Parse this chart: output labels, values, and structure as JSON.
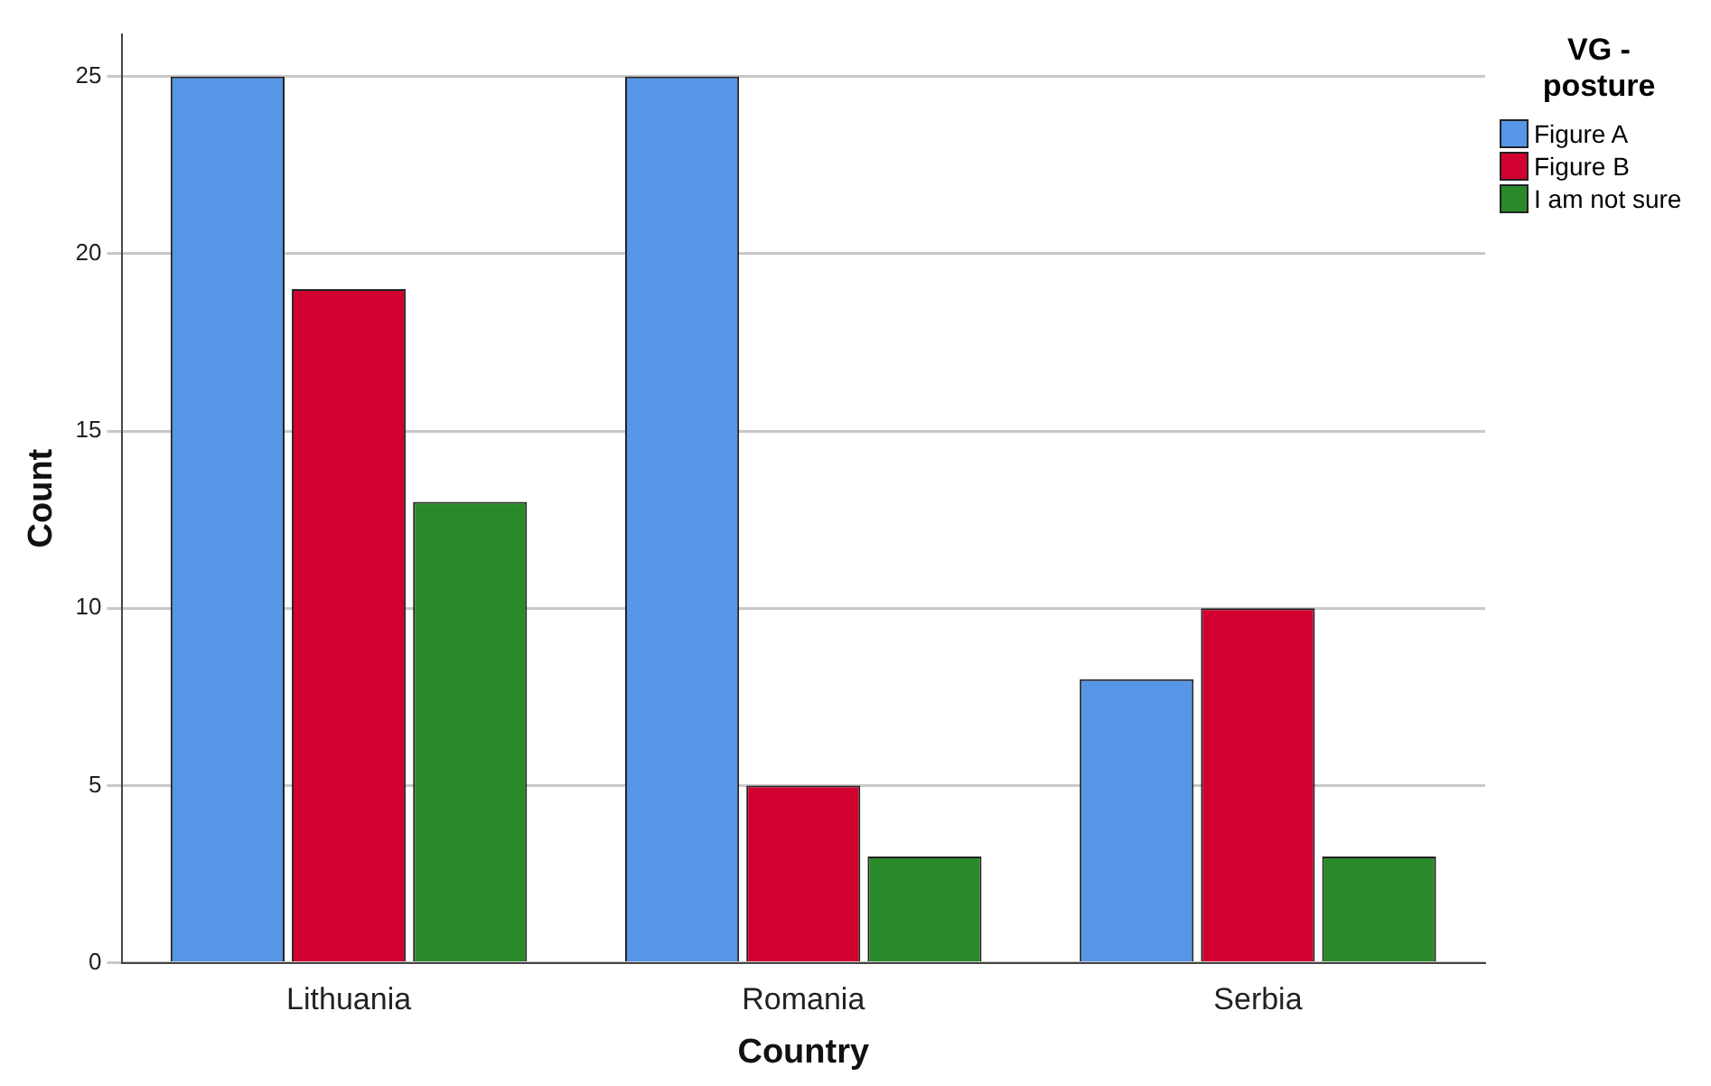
{
  "chart_data": {
    "type": "bar",
    "xlabel": "Country",
    "ylabel": "Count",
    "legend_title": "VG -\nposture",
    "categories": [
      "Lithuania",
      "Romania",
      "Serbia"
    ],
    "series": [
      {
        "name": "Figure A",
        "color": "#5596e6",
        "values": [
          25,
          25,
          8
        ]
      },
      {
        "name": "Figure B",
        "color": "#d2002f",
        "values": [
          19,
          5,
          10
        ]
      },
      {
        "name": "I am not sure",
        "color": "#2a8a2a",
        "values": [
          13,
          3,
          3
        ]
      }
    ],
    "ylim": [
      0,
      26.2
    ],
    "yticks": [
      0,
      5,
      10,
      15,
      20,
      25
    ],
    "grid": "y",
    "legend": "top right"
  }
}
